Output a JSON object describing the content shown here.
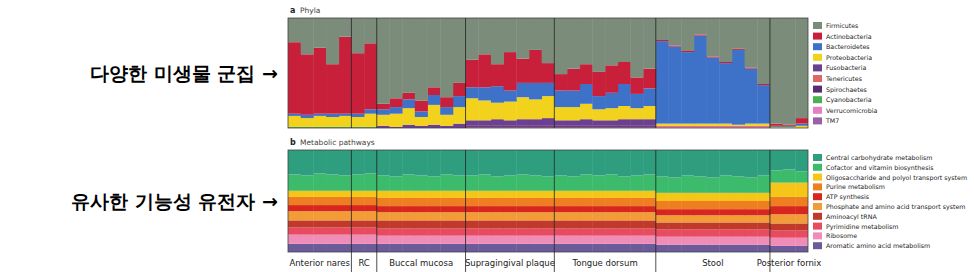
{
  "chart_data": [
    {
      "type": "bar",
      "stacked": true,
      "panel": "a",
      "title": "Phyla",
      "annotation": "다양한 미생물 군집 →",
      "ylim": [
        0,
        100
      ],
      "tick_labels": false,
      "legend": "right",
      "series": [
        {
          "name": "Firmicutes",
          "color": "#7b8c7b",
          "values": [
            22,
            33,
            27,
            42,
            17,
            32,
            23,
            78,
            73,
            68,
            75,
            63,
            72,
            59,
            38,
            33,
            42,
            31,
            37,
            29,
            41,
            51,
            46,
            42,
            49,
            43,
            40,
            54,
            46,
            20,
            25,
            30,
            15,
            35,
            40,
            28,
            45,
            60,
            96,
            97,
            91
          ]
        },
        {
          "name": "Actinobacteria",
          "color": "#c8203a",
          "values": [
            65,
            55,
            60,
            45,
            70,
            55,
            60,
            5,
            8,
            6,
            10,
            7,
            9,
            12,
            25,
            30,
            20,
            35,
            22,
            30,
            18,
            15,
            20,
            18,
            22,
            25,
            20,
            15,
            18,
            1,
            1,
            1,
            1,
            1,
            1,
            1,
            1,
            1,
            2,
            1,
            5
          ]
        },
        {
          "name": "Bacteroidetes",
          "color": "#3d72c8",
          "values": [
            2,
            3,
            2,
            3,
            2,
            3,
            4,
            5,
            6,
            8,
            5,
            9,
            7,
            10,
            10,
            12,
            15,
            10,
            13,
            15,
            12,
            15,
            15,
            18,
            12,
            14,
            20,
            13,
            16,
            75,
            70,
            65,
            80,
            60,
            55,
            68,
            50,
            35,
            1,
            1,
            2
          ]
        },
        {
          "name": "Proteobacteria",
          "color": "#f2d21c",
          "values": [
            10,
            8,
            10,
            9,
            10,
            9,
            12,
            10,
            12,
            15,
            8,
            18,
            10,
            15,
            20,
            18,
            15,
            17,
            20,
            18,
            20,
            12,
            12,
            14,
            10,
            11,
            12,
            10,
            12,
            2,
            2,
            2,
            2,
            2,
            2,
            1,
            2,
            2,
            1,
            1,
            2
          ]
        },
        {
          "name": "Fusobacteria",
          "color": "#6c3f91",
          "values": [
            0,
            0,
            0,
            0,
            0,
            0,
            0,
            2,
            1,
            3,
            2,
            3,
            2,
            4,
            5,
            5,
            6,
            5,
            6,
            6,
            7,
            5,
            5,
            6,
            5,
            5,
            6,
            6,
            6,
            0,
            0,
            0,
            0,
            0,
            0,
            0,
            0,
            0,
            0,
            0,
            0
          ]
        },
        {
          "name": "Tenericutes",
          "color": "#e06666",
          "values": [
            0,
            0,
            0,
            0,
            0,
            0,
            0,
            0,
            0,
            0,
            0,
            0,
            0,
            0,
            0,
            0,
            0,
            0,
            0,
            0,
            0,
            0,
            0,
            0,
            0,
            0,
            0,
            0,
            0,
            1,
            1,
            1,
            1,
            1,
            1,
            1,
            1,
            1,
            0,
            0,
            0
          ]
        },
        {
          "name": "Spirochaetes",
          "color": "#5b2c6f",
          "values": [
            0,
            0,
            0,
            0,
            0,
            0,
            0,
            0,
            0,
            0,
            0,
            0,
            0,
            0,
            1,
            1,
            1,
            1,
            1,
            1,
            1,
            1,
            1,
            1,
            1,
            1,
            1,
            1,
            1,
            0,
            0,
            0,
            0,
            0,
            0,
            0,
            0,
            0,
            0,
            0,
            0
          ]
        },
        {
          "name": "Cyanobacteria",
          "color": "#4caf50",
          "values": [
            1,
            1,
            1,
            1,
            1,
            1,
            1,
            0,
            0,
            0,
            0,
            0,
            0,
            0,
            0,
            0,
            0,
            0,
            0,
            0,
            0,
            0,
            0,
            0,
            0,
            0,
            0,
            0,
            0,
            0,
            0,
            0,
            0,
            0,
            0,
            0,
            0,
            0,
            0,
            0,
            0
          ]
        },
        {
          "name": "Verrucomicrobia",
          "color": "#e57fc1",
          "values": [
            0,
            0,
            0,
            0,
            0,
            0,
            0,
            0,
            0,
            0,
            0,
            0,
            0,
            0,
            0,
            0,
            0,
            0,
            0,
            0,
            0,
            0,
            0,
            0,
            0,
            0,
            0,
            0,
            0,
            1,
            1,
            1,
            1,
            1,
            1,
            1,
            1,
            1,
            0,
            0,
            0
          ]
        },
        {
          "name": "TM7",
          "color": "#9b5fa5",
          "values": [
            0,
            0,
            0,
            0,
            0,
            0,
            0,
            0,
            0,
            0,
            0,
            0,
            0,
            0,
            1,
            1,
            1,
            1,
            1,
            1,
            1,
            1,
            1,
            1,
            1,
            1,
            1,
            1,
            1,
            0,
            0,
            0,
            0,
            0,
            0,
            0,
            0,
            0,
            0,
            0,
            0
          ]
        }
      ]
    },
    {
      "type": "bar",
      "stacked": true,
      "panel": "b",
      "title": "Metabolic pathways",
      "annotation": "유사한 기능성 유전자 →",
      "ylim": [
        0,
        100
      ],
      "tick_labels": false,
      "legend": "right",
      "groups": [
        {
          "label": "Anterior nares",
          "count": 5
        },
        {
          "label": "RC",
          "count": 2
        },
        {
          "label": "Buccal mucosa",
          "count": 7
        },
        {
          "label": "Supragingival plaque",
          "count": 7
        },
        {
          "label": "Tongue dorsum",
          "count": 8
        },
        {
          "label": "Stool",
          "count": 9
        },
        {
          "label": "Posterior fornix",
          "count": 3
        }
      ],
      "series": [
        {
          "name": "Central carbohydrate metabolism",
          "color": "#2e9e7e",
          "values": [
            24,
            25,
            23,
            24,
            25,
            24,
            23,
            25,
            26,
            24,
            25,
            26,
            24,
            25,
            25,
            24,
            26,
            25,
            24,
            25,
            26,
            25,
            26,
            24,
            25,
            24,
            26,
            25,
            24,
            26,
            27,
            25,
            26,
            27,
            25,
            26,
            27,
            25,
            20,
            19,
            21
          ]
        },
        {
          "name": "Cofactor and vitamin biosynthesis",
          "color": "#3dbb6c",
          "values": [
            16,
            15,
            17,
            16,
            15,
            16,
            17,
            15,
            14,
            16,
            15,
            14,
            16,
            15,
            15,
            16,
            14,
            15,
            16,
            15,
            14,
            15,
            14,
            16,
            15,
            16,
            14,
            15,
            16,
            16,
            15,
            17,
            16,
            15,
            17,
            16,
            15,
            17,
            12,
            13,
            11
          ]
        },
        {
          "name": "Oligosaccharide and polyol transport system",
          "color": "#f5c518",
          "values": [
            6,
            6,
            6,
            6,
            6,
            6,
            6,
            7,
            7,
            7,
            7,
            7,
            7,
            7,
            7,
            7,
            7,
            7,
            7,
            7,
            7,
            7,
            7,
            7,
            7,
            7,
            7,
            7,
            7,
            8,
            8,
            8,
            8,
            8,
            8,
            8,
            8,
            8,
            14,
            14,
            14
          ]
        },
        {
          "name": "Purine metabolism",
          "color": "#ef7d22",
          "values": [
            8,
            8,
            8,
            8,
            8,
            8,
            8,
            8,
            8,
            8,
            8,
            8,
            8,
            8,
            8,
            8,
            8,
            8,
            8,
            8,
            8,
            8,
            8,
            8,
            8,
            8,
            8,
            8,
            8,
            8,
            8,
            8,
            8,
            8,
            8,
            8,
            8,
            8,
            9,
            9,
            9
          ]
        },
        {
          "name": "ATP synthesis",
          "color": "#d7261e",
          "values": [
            6,
            6,
            6,
            6,
            6,
            6,
            6,
            6,
            6,
            6,
            6,
            6,
            6,
            6,
            6,
            6,
            6,
            6,
            6,
            6,
            6,
            6,
            6,
            6,
            6,
            6,
            6,
            6,
            6,
            6,
            6,
            6,
            6,
            6,
            6,
            6,
            6,
            6,
            8,
            8,
            8
          ]
        },
        {
          "name": "Phosphate and amino acid transport system",
          "color": "#f29c38",
          "values": [
            9,
            9,
            9,
            9,
            9,
            9,
            9,
            8,
            8,
            8,
            8,
            8,
            8,
            8,
            8,
            8,
            8,
            8,
            8,
            8,
            8,
            8,
            8,
            8,
            8,
            8,
            8,
            8,
            8,
            7,
            7,
            7,
            7,
            7,
            7,
            7,
            7,
            7,
            9,
            9,
            9
          ]
        },
        {
          "name": "Aminoacyl tRNA",
          "color": "#c0392b",
          "values": [
            7,
            7,
            7,
            7,
            7,
            7,
            7,
            8,
            8,
            8,
            8,
            8,
            8,
            8,
            8,
            8,
            8,
            8,
            8,
            8,
            8,
            8,
            8,
            8,
            8,
            8,
            8,
            8,
            8,
            7,
            7,
            7,
            7,
            7,
            7,
            7,
            7,
            7,
            7,
            7,
            7
          ]
        },
        {
          "name": "Pyrimidine metabolism",
          "color": "#e84a5f",
          "values": [
            7,
            7,
            7,
            7,
            7,
            7,
            7,
            7,
            7,
            7,
            7,
            7,
            7,
            7,
            7,
            7,
            7,
            7,
            7,
            7,
            7,
            7,
            7,
            7,
            7,
            7,
            7,
            7,
            7,
            7,
            7,
            7,
            7,
            7,
            7,
            7,
            7,
            7,
            7,
            7,
            7
          ]
        },
        {
          "name": "Ribosome",
          "color": "#f08cb8",
          "values": [
            9,
            9,
            9,
            9,
            9,
            9,
            9,
            8,
            8,
            8,
            8,
            8,
            8,
            8,
            8,
            8,
            8,
            8,
            8,
            8,
            8,
            8,
            8,
            8,
            8,
            8,
            8,
            8,
            8,
            8,
            8,
            8,
            8,
            8,
            8,
            8,
            8,
            8,
            8,
            8,
            8
          ]
        },
        {
          "name": "Aromatic amino acid metabolism",
          "color": "#6c5b9b",
          "values": [
            8,
            8,
            8,
            8,
            8,
            8,
            8,
            8,
            8,
            8,
            8,
            8,
            8,
            8,
            8,
            8,
            8,
            8,
            8,
            8,
            8,
            8,
            8,
            8,
            8,
            8,
            8,
            8,
            8,
            7,
            7,
            7,
            7,
            7,
            7,
            7,
            7,
            7,
            6,
            6,
            6
          ]
        }
      ]
    }
  ]
}
